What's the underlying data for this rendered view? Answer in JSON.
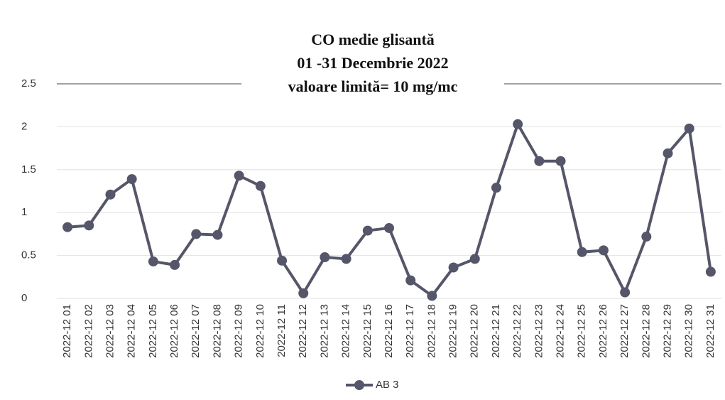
{
  "chart_data": {
    "type": "line",
    "title_lines": [
      "CO medie glisantă",
      "01 -31 Decembrie  2022",
      "valoare limită= 10 mg/mc"
    ],
    "categories": [
      "2022-12 01",
      "2022-12 02",
      "2022-12 03",
      "2022-12 04",
      "2022-12 05",
      "2022-12 06",
      "2022-12 07",
      "2022-12 08",
      "2022-12 09",
      "2022-12 10",
      "2022-12 11",
      "2022-12 12",
      "2022-12 13",
      "2022-12 14",
      "2022-12 15",
      "2022-12 16",
      "2022-12 17",
      "2022-12 18",
      "2022-12 19",
      "2022-12 20",
      "2022-12 21",
      "2022-12 22",
      "2022-12 23",
      "2022-12 24",
      "2022-12 25",
      "2022-12 26",
      "2022-12 27",
      "2022-12 28",
      "2022-12 29",
      "2022-12 30",
      "2022-12 31"
    ],
    "series": [
      {
        "name": "AB 3",
        "color": "#56566a",
        "values": [
          0.83,
          0.85,
          1.21,
          1.39,
          0.43,
          0.39,
          0.75,
          0.74,
          1.43,
          1.31,
          0.44,
          0.06,
          0.48,
          0.46,
          0.79,
          0.82,
          0.21,
          0.03,
          0.36,
          0.46,
          1.29,
          2.03,
          1.6,
          1.6,
          0.54,
          0.56,
          0.07,
          0.72,
          1.69,
          1.98,
          0.31
        ]
      }
    ],
    "ylim": [
      0,
      2.5
    ],
    "yticks": [
      0,
      0.5,
      1,
      1.5,
      2,
      2.5
    ],
    "grid": true,
    "legend": "bottom"
  }
}
